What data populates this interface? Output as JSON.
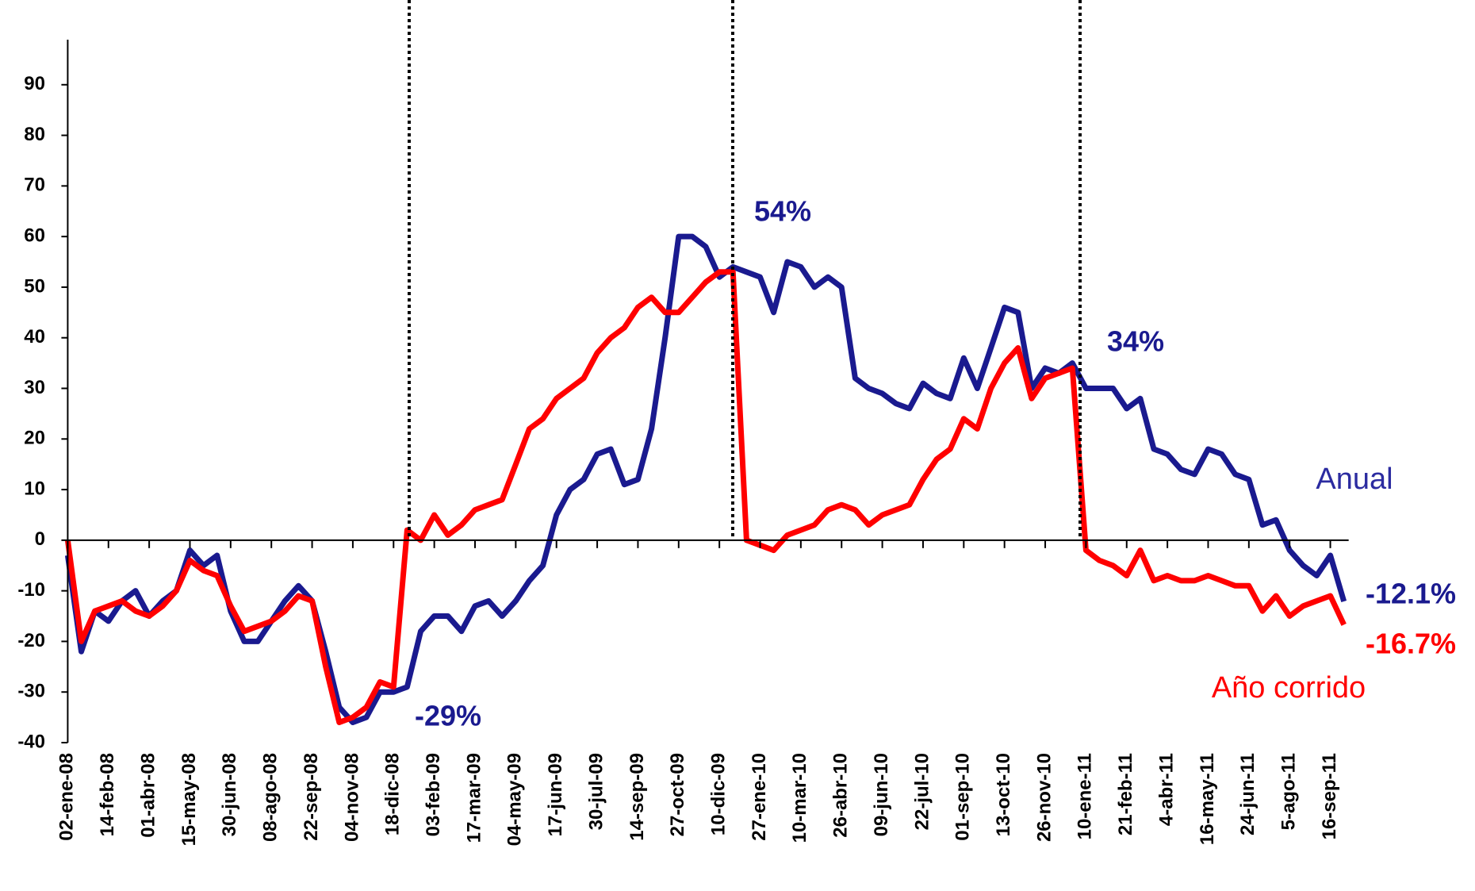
{
  "chart_data": {
    "type": "line",
    "categories": [
      "02-ene-08",
      null,
      null,
      "14-feb-08",
      null,
      null,
      "01-abr-08",
      null,
      null,
      "15-may-08",
      null,
      null,
      "30-jun-08",
      null,
      null,
      "08-ago-08",
      null,
      null,
      "22-sep-08",
      null,
      null,
      "04-nov-08",
      null,
      null,
      "18-dic-08",
      null,
      null,
      "03-feb-09",
      null,
      null,
      "17-mar-09",
      null,
      null,
      "04-may-09",
      null,
      null,
      "17-jun-09",
      null,
      null,
      "30-jul-09",
      null,
      null,
      "14-sep-09",
      null,
      null,
      "27-oct-09",
      null,
      null,
      "10-dic-09",
      null,
      null,
      "27-ene-10",
      null,
      null,
      "10-mar-10",
      null,
      null,
      "26-abr-10",
      null,
      null,
      "09-jun-10",
      null,
      null,
      "22-jul-10",
      null,
      null,
      "01-sep-10",
      null,
      null,
      "13-oct-10",
      null,
      null,
      "26-nov-10",
      null,
      null,
      "10-ene-11",
      null,
      null,
      "21-feb-11",
      null,
      null,
      "4-abr-11",
      null,
      null,
      "16-may-11",
      null,
      null,
      "24-jun-11",
      null,
      null,
      "5-ago-11",
      null,
      null,
      "16-sep-11",
      null
    ],
    "series": [
      {
        "name": "Anual",
        "color": "#1a1a8f",
        "values": [
          -3,
          -22,
          -14,
          -16,
          -12,
          -10,
          -15,
          -12,
          -10,
          -2,
          -5,
          -3,
          -14,
          -20,
          -20,
          -16,
          -12,
          -9,
          -12,
          -22,
          -33,
          -36,
          -35,
          -30,
          -30,
          -29,
          -18,
          -15,
          -15,
          -18,
          -13,
          -12,
          -15,
          -12,
          -8,
          -5,
          5,
          10,
          12,
          17,
          18,
          11,
          12,
          22,
          40,
          60,
          60,
          58,
          52,
          54,
          53,
          52,
          45,
          55,
          54,
          50,
          52,
          50,
          32,
          30,
          29,
          27,
          26,
          31,
          29,
          28,
          36,
          30,
          38,
          46,
          45,
          30,
          34,
          33,
          35,
          30,
          30,
          30,
          26,
          28,
          18,
          17,
          14,
          13,
          18,
          17,
          13,
          12,
          3,
          4,
          -2,
          -5,
          -7,
          -3,
          -12.1
        ]
      },
      {
        "name": "Año corrido",
        "color": "#ff0000",
        "values": [
          0,
          -20,
          -14,
          -13,
          -12,
          -14,
          -15,
          -13,
          -10,
          -4,
          -6,
          -7,
          -13,
          -18,
          -17,
          -16,
          -14,
          -11,
          -12,
          -25,
          -36,
          -35,
          -33,
          -28,
          -29,
          2,
          0,
          5,
          1,
          3,
          6,
          7,
          8,
          15,
          22,
          24,
          28,
          30,
          32,
          37,
          40,
          42,
          46,
          48,
          45,
          45,
          48,
          51,
          53,
          53,
          0,
          -1,
          -2,
          1,
          2,
          3,
          6,
          7,
          6,
          3,
          5,
          6,
          7,
          12,
          16,
          18,
          24,
          22,
          30,
          35,
          38,
          28,
          32,
          33,
          34,
          -2,
          -4,
          -5,
          -7,
          -2,
          -8,
          -7,
          -8,
          -8,
          -7,
          -8,
          -9,
          -9,
          -14,
          -11,
          -15,
          -13,
          -12,
          -11,
          -16.7
        ]
      }
    ],
    "annotations": [
      "54%",
      "34%",
      "-29%",
      "-12.1%",
      "-16.7%"
    ],
    "ylim": [
      -40,
      100
    ],
    "yticks": [
      -40,
      -30,
      -20,
      -10,
      0,
      10,
      20,
      30,
      40,
      50,
      60,
      70,
      80,
      90
    ]
  }
}
